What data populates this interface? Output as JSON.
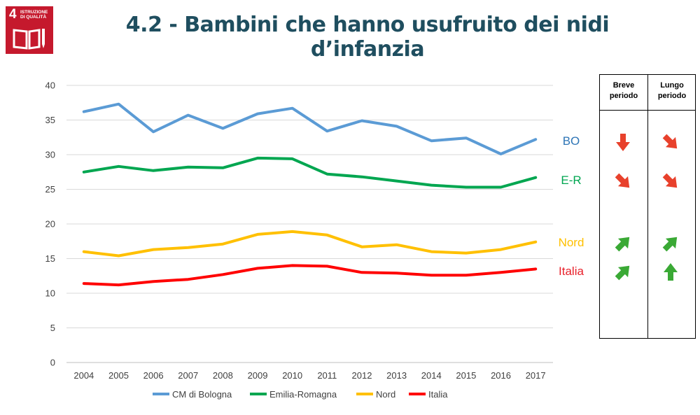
{
  "header": {
    "title": "4.2 - Bambini che hanno usufruito dei nidi d’infanzia",
    "sdg_logo": {
      "number": "4",
      "text": "ISTRUZIONE DI QUALITÀ",
      "color": "#c5192d",
      "icon": "book-pen-icon"
    }
  },
  "chart_data": {
    "type": "line",
    "title": "",
    "xlabel": "",
    "ylabel": "",
    "x": [
      "2004",
      "2005",
      "2006",
      "2007",
      "2008",
      "2009",
      "2010",
      "2011",
      "2012",
      "2013",
      "2014",
      "2015",
      "2016",
      "2017"
    ],
    "ylim": [
      0,
      40
    ],
    "yticks": [
      0,
      5,
      10,
      15,
      20,
      25,
      30,
      35,
      40
    ],
    "grid": true,
    "legend_position": "bottom",
    "series": [
      {
        "name": "CM di Bologna",
        "color": "#5b9bd5",
        "values": [
          36.2,
          37.3,
          33.3,
          35.7,
          33.8,
          35.9,
          36.7,
          33.4,
          34.9,
          34.1,
          32.0,
          32.4,
          30.1,
          32.2
        ]
      },
      {
        "name": "Emilia-Romagna",
        "color": "#00a650",
        "values": [
          27.5,
          28.3,
          27.7,
          28.2,
          28.1,
          29.5,
          29.4,
          27.2,
          26.8,
          26.2,
          25.6,
          25.3,
          25.3,
          26.7
        ]
      },
      {
        "name": "Nord",
        "color": "#ffc000",
        "values": [
          16.0,
          15.4,
          16.3,
          16.6,
          17.1,
          18.5,
          18.9,
          18.4,
          16.7,
          17.0,
          16.0,
          15.8,
          16.3,
          17.4
        ]
      },
      {
        "name": "Italia",
        "color": "#ff0000",
        "values": [
          11.4,
          11.2,
          11.7,
          12.0,
          12.7,
          13.6,
          14.0,
          13.9,
          13.0,
          12.9,
          12.6,
          12.6,
          13.0,
          13.5
        ]
      }
    ]
  },
  "trend_table": {
    "headers": {
      "short_term": "Breve periodo",
      "long_term": "Lungo periodo"
    },
    "rows": [
      {
        "label": "BO",
        "color": "#2e75b6",
        "short": "down",
        "long": "down-right",
        "short_color": "#e8412c",
        "long_color": "#e8412c"
      },
      {
        "label": "E-R",
        "color": "#00a650",
        "short": "down-right",
        "long": "down-right",
        "short_color": "#e8412c",
        "long_color": "#e8412c"
      },
      {
        "label": "Nord",
        "color": "#ffc000",
        "short": "up-right",
        "long": "up-right",
        "short_color": "#3aa935",
        "long_color": "#3aa935"
      },
      {
        "label": "Italia",
        "color": "#e8202a",
        "short": "up-right",
        "long": "up",
        "short_color": "#3aa935",
        "long_color": "#3aa935"
      }
    ]
  }
}
